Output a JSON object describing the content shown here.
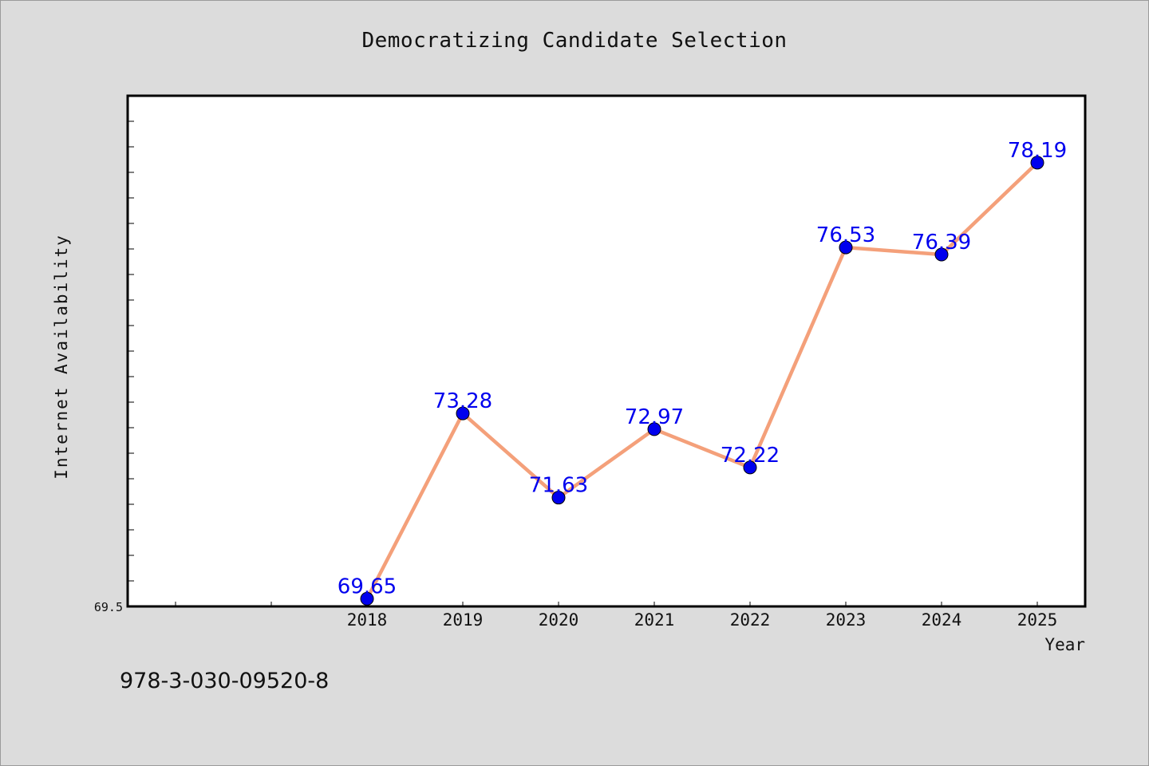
{
  "chart_data": {
    "type": "line",
    "title": "Democratizing Candidate Selection",
    "xlabel": "Year",
    "ylabel": "Internet Availability",
    "x": [
      "2018",
      "2019",
      "2020",
      "2021",
      "2022",
      "2023",
      "2024",
      "2025"
    ],
    "series": [
      {
        "values": [
          69.65,
          73.28,
          71.63,
          72.97,
          72.22,
          76.53,
          76.39,
          78.19
        ],
        "data_labels": [
          "69.65",
          "73.28",
          "71.63",
          "72.97",
          "72.22",
          "76.53",
          "76.39",
          "78.19"
        ],
        "line_color": "#f4a07a",
        "marker_color": "#0000ee"
      }
    ],
    "y_tick_labels": [
      "69.5"
    ],
    "ylim": [
      69.5,
      79.5
    ],
    "grid": false,
    "legend": "none",
    "label_color": "#0000ee"
  },
  "footer": {
    "isbn": "978-3-030-09520-8"
  }
}
